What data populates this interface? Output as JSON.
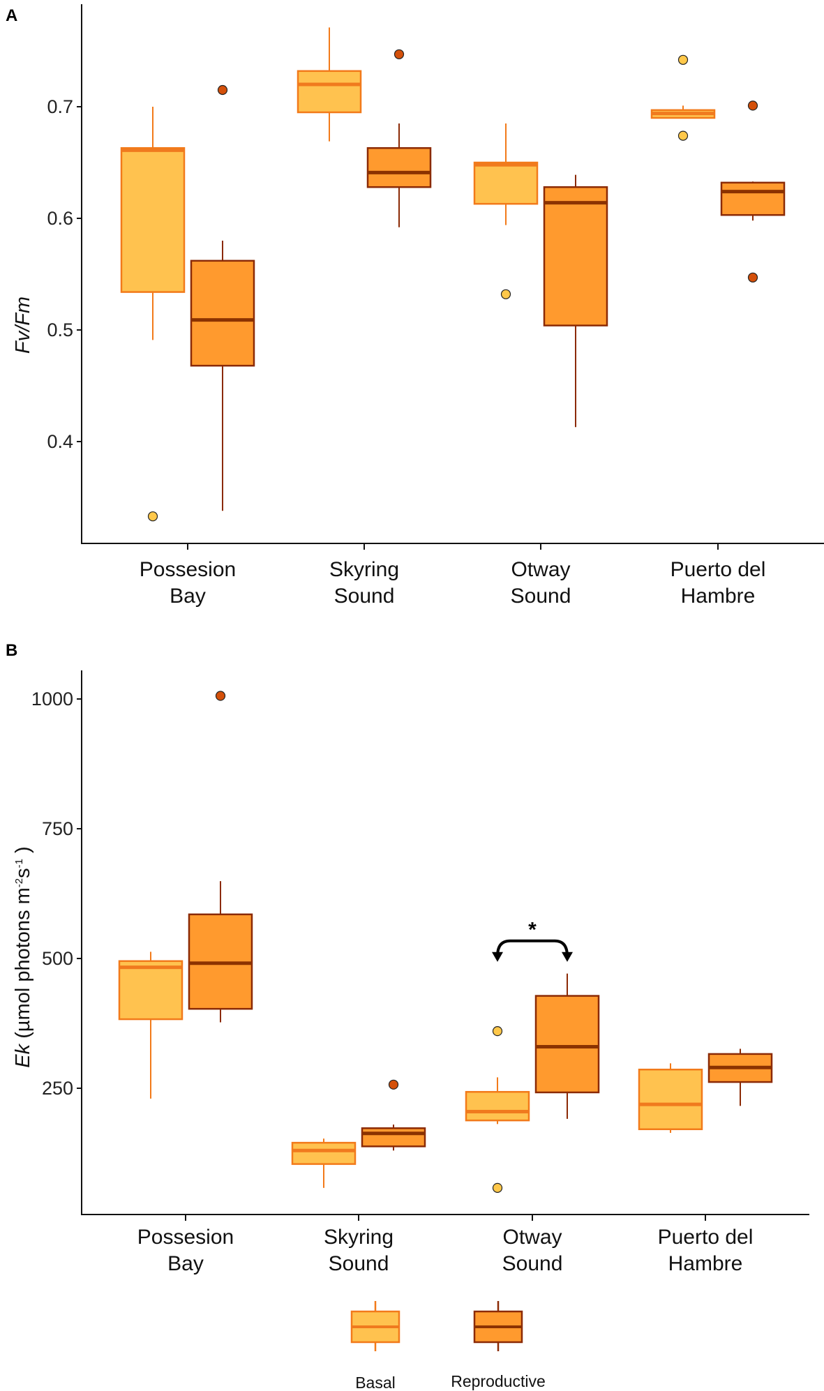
{
  "colors": {
    "basal_fill": "#FFC24F",
    "basal_stroke": "#F27A1A",
    "basal_median": "#F07A1E",
    "repro_fill": "#FF9A2E",
    "repro_stroke": "#8B2A05",
    "repro_median": "#8B3200",
    "basal_outlier": "#FFC84A",
    "repro_outlier": "#D4500A"
  },
  "legend": {
    "items": [
      "Basal",
      "Reproductive"
    ],
    "placement": "bottom"
  },
  "chart_data": [
    {
      "panel": "A",
      "type": "box",
      "ylabel": "Fv/Fm",
      "ylim": [
        0.31,
        0.793
      ],
      "yticks": [
        0.4,
        0.5,
        0.6,
        0.7
      ],
      "ytick_labels": [
        "0.4",
        "0.5",
        "0.6",
        "0.7"
      ],
      "categories": [
        [
          "Possesion",
          "Bay"
        ],
        [
          "Skyring",
          "Sound"
        ],
        [
          "Otway",
          "Sound"
        ],
        [
          "Puerto del",
          "Hambre"
        ]
      ],
      "series": [
        {
          "name": "Basal",
          "boxes": [
            {
              "low": 0.491,
              "q1": 0.534,
              "median": 0.661,
              "q3": 0.663,
              "high": 0.7,
              "outliers": [
                0.333
              ]
            },
            {
              "low": 0.669,
              "q1": 0.695,
              "median": 0.72,
              "q3": 0.732,
              "high": 0.771,
              "outliers": []
            },
            {
              "low": 0.594,
              "q1": 0.613,
              "median": 0.648,
              "q3": 0.65,
              "high": 0.685,
              "outliers": [
                0.532
              ]
            },
            {
              "low": 0.69,
              "q1": 0.69,
              "median": 0.694,
              "q3": 0.697,
              "high": 0.701,
              "outliers": [
                0.742,
                0.674
              ]
            }
          ]
        },
        {
          "name": "Reproductive",
          "boxes": [
            {
              "low": 0.338,
              "q1": 0.468,
              "median": 0.509,
              "q3": 0.562,
              "high": 0.58,
              "outliers": [
                0.715
              ]
            },
            {
              "low": 0.592,
              "q1": 0.628,
              "median": 0.641,
              "q3": 0.663,
              "high": 0.685,
              "outliers": [
                0.747
              ]
            },
            {
              "low": 0.413,
              "q1": 0.504,
              "median": 0.614,
              "q3": 0.628,
              "high": 0.639,
              "outliers": []
            },
            {
              "low": 0.598,
              "q1": 0.603,
              "median": 0.624,
              "q3": 0.632,
              "high": 0.633,
              "outliers": [
                0.701,
                0.547
              ]
            }
          ]
        }
      ]
    },
    {
      "panel": "B",
      "type": "box",
      "ylabel_italic": "Ek",
      "ylabel_rest": " (µmol photons m",
      "ylabel_sup1": "-2",
      "ylabel_mid": "s",
      "ylabel_sup2": "-1",
      "ylabel_end": " )",
      "ylim": [
        10,
        1053
      ],
      "yticks": [
        250,
        500,
        750,
        1000
      ],
      "ytick_labels": [
        "250",
        "500",
        "750",
        "1000"
      ],
      "categories": [
        [
          "Possesion",
          "Bay"
        ],
        [
          "Skyring",
          "Sound"
        ],
        [
          "Otway",
          "Sound"
        ],
        [
          "Puerto del",
          "Hambre"
        ]
      ],
      "series": [
        {
          "name": "Basal",
          "boxes": [
            {
              "low": 230,
              "q1": 383,
              "median": 483,
              "q3": 495,
              "high": 513,
              "outliers": []
            },
            {
              "low": 58,
              "q1": 104,
              "median": 130,
              "q3": 145,
              "high": 153,
              "outliers": []
            },
            {
              "low": 181,
              "q1": 188,
              "median": 205,
              "q3": 243,
              "high": 271,
              "outliers": [
                360,
                58
              ]
            },
            {
              "low": 164,
              "q1": 171,
              "median": 219,
              "q3": 286,
              "high": 298,
              "outliers": []
            }
          ]
        },
        {
          "name": "Reproductive",
          "boxes": [
            {
              "low": 377,
              "q1": 403,
              "median": 491,
              "q3": 585,
              "high": 649,
              "outliers": [
                1006
              ]
            },
            {
              "low": 130,
              "q1": 138,
              "median": 163,
              "q3": 173,
              "high": 180,
              "outliers": [
                257
              ]
            },
            {
              "low": 191,
              "q1": 242,
              "median": 330,
              "q3": 428,
              "high": 471,
              "outliers": []
            },
            {
              "low": 216,
              "q1": 262,
              "median": 290,
              "q3": 316,
              "high": 326,
              "outliers": []
            }
          ]
        }
      ],
      "annotation": {
        "text": "*",
        "category": 2,
        "between": [
          "Basal",
          "Reproductive"
        ],
        "y": 534
      }
    }
  ]
}
